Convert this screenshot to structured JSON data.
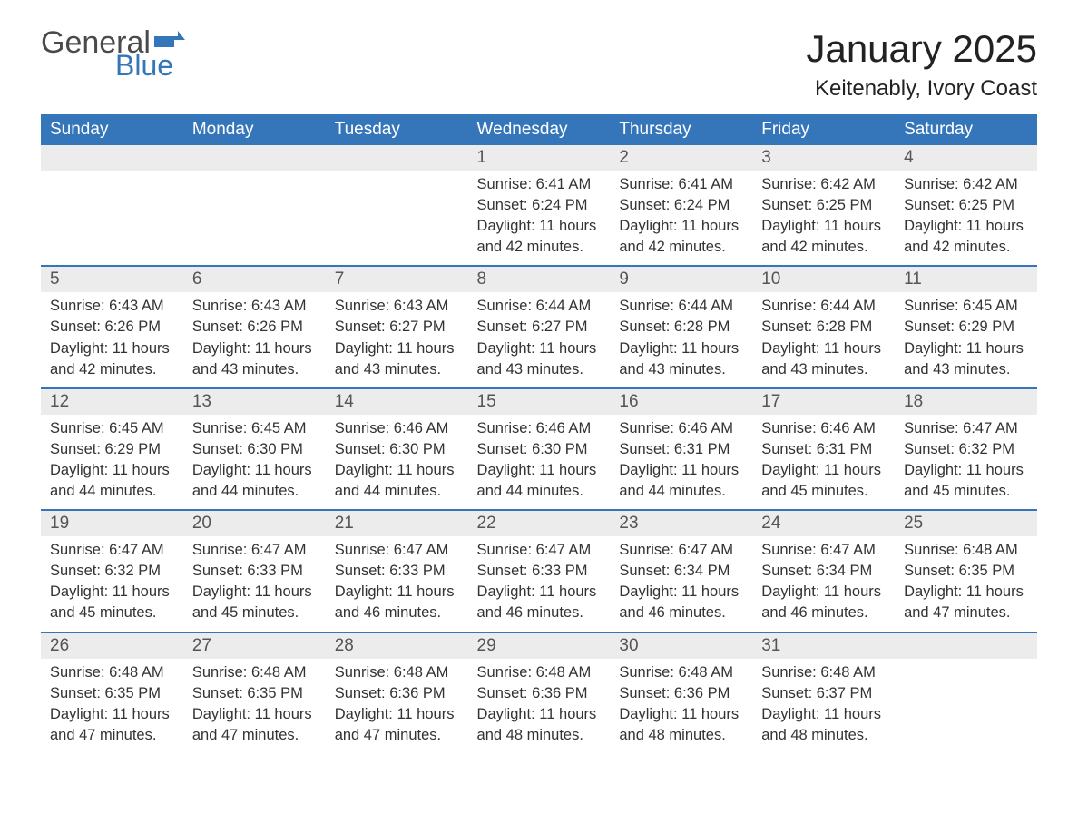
{
  "logo": {
    "word1": "General",
    "word2": "Blue",
    "brand_color": "#3576ba",
    "text_color": "#4a4a4a"
  },
  "title": "January 2025",
  "location": "Keitenably, Ivory Coast",
  "colors": {
    "header_bg": "#3576ba",
    "header_text": "#ffffff",
    "daynum_bg": "#ececec",
    "daynum_text": "#555555",
    "body_text": "#333333",
    "page_bg": "#ffffff",
    "separator": "#3576ba"
  },
  "weekdays": [
    "Sunday",
    "Monday",
    "Tuesday",
    "Wednesday",
    "Thursday",
    "Friday",
    "Saturday"
  ],
  "weeks": [
    [
      null,
      null,
      null,
      {
        "n": "1",
        "sunrise": "6:41 AM",
        "sunset": "6:24 PM",
        "daylight": "11 hours and 42 minutes."
      },
      {
        "n": "2",
        "sunrise": "6:41 AM",
        "sunset": "6:24 PM",
        "daylight": "11 hours and 42 minutes."
      },
      {
        "n": "3",
        "sunrise": "6:42 AM",
        "sunset": "6:25 PM",
        "daylight": "11 hours and 42 minutes."
      },
      {
        "n": "4",
        "sunrise": "6:42 AM",
        "sunset": "6:25 PM",
        "daylight": "11 hours and 42 minutes."
      }
    ],
    [
      {
        "n": "5",
        "sunrise": "6:43 AM",
        "sunset": "6:26 PM",
        "daylight": "11 hours and 42 minutes."
      },
      {
        "n": "6",
        "sunrise": "6:43 AM",
        "sunset": "6:26 PM",
        "daylight": "11 hours and 43 minutes."
      },
      {
        "n": "7",
        "sunrise": "6:43 AM",
        "sunset": "6:27 PM",
        "daylight": "11 hours and 43 minutes."
      },
      {
        "n": "8",
        "sunrise": "6:44 AM",
        "sunset": "6:27 PM",
        "daylight": "11 hours and 43 minutes."
      },
      {
        "n": "9",
        "sunrise": "6:44 AM",
        "sunset": "6:28 PM",
        "daylight": "11 hours and 43 minutes."
      },
      {
        "n": "10",
        "sunrise": "6:44 AM",
        "sunset": "6:28 PM",
        "daylight": "11 hours and 43 minutes."
      },
      {
        "n": "11",
        "sunrise": "6:45 AM",
        "sunset": "6:29 PM",
        "daylight": "11 hours and 43 minutes."
      }
    ],
    [
      {
        "n": "12",
        "sunrise": "6:45 AM",
        "sunset": "6:29 PM",
        "daylight": "11 hours and 44 minutes."
      },
      {
        "n": "13",
        "sunrise": "6:45 AM",
        "sunset": "6:30 PM",
        "daylight": "11 hours and 44 minutes."
      },
      {
        "n": "14",
        "sunrise": "6:46 AM",
        "sunset": "6:30 PM",
        "daylight": "11 hours and 44 minutes."
      },
      {
        "n": "15",
        "sunrise": "6:46 AM",
        "sunset": "6:30 PM",
        "daylight": "11 hours and 44 minutes."
      },
      {
        "n": "16",
        "sunrise": "6:46 AM",
        "sunset": "6:31 PM",
        "daylight": "11 hours and 44 minutes."
      },
      {
        "n": "17",
        "sunrise": "6:46 AM",
        "sunset": "6:31 PM",
        "daylight": "11 hours and 45 minutes."
      },
      {
        "n": "18",
        "sunrise": "6:47 AM",
        "sunset": "6:32 PM",
        "daylight": "11 hours and 45 minutes."
      }
    ],
    [
      {
        "n": "19",
        "sunrise": "6:47 AM",
        "sunset": "6:32 PM",
        "daylight": "11 hours and 45 minutes."
      },
      {
        "n": "20",
        "sunrise": "6:47 AM",
        "sunset": "6:33 PM",
        "daylight": "11 hours and 45 minutes."
      },
      {
        "n": "21",
        "sunrise": "6:47 AM",
        "sunset": "6:33 PM",
        "daylight": "11 hours and 46 minutes."
      },
      {
        "n": "22",
        "sunrise": "6:47 AM",
        "sunset": "6:33 PM",
        "daylight": "11 hours and 46 minutes."
      },
      {
        "n": "23",
        "sunrise": "6:47 AM",
        "sunset": "6:34 PM",
        "daylight": "11 hours and 46 minutes."
      },
      {
        "n": "24",
        "sunrise": "6:47 AM",
        "sunset": "6:34 PM",
        "daylight": "11 hours and 46 minutes."
      },
      {
        "n": "25",
        "sunrise": "6:48 AM",
        "sunset": "6:35 PM",
        "daylight": "11 hours and 47 minutes."
      }
    ],
    [
      {
        "n": "26",
        "sunrise": "6:48 AM",
        "sunset": "6:35 PM",
        "daylight": "11 hours and 47 minutes."
      },
      {
        "n": "27",
        "sunrise": "6:48 AM",
        "sunset": "6:35 PM",
        "daylight": "11 hours and 47 minutes."
      },
      {
        "n": "28",
        "sunrise": "6:48 AM",
        "sunset": "6:36 PM",
        "daylight": "11 hours and 47 minutes."
      },
      {
        "n": "29",
        "sunrise": "6:48 AM",
        "sunset": "6:36 PM",
        "daylight": "11 hours and 48 minutes."
      },
      {
        "n": "30",
        "sunrise": "6:48 AM",
        "sunset": "6:36 PM",
        "daylight": "11 hours and 48 minutes."
      },
      {
        "n": "31",
        "sunrise": "6:48 AM",
        "sunset": "6:37 PM",
        "daylight": "11 hours and 48 minutes."
      },
      null
    ]
  ],
  "labels": {
    "sunrise": "Sunrise: ",
    "sunset": "Sunset: ",
    "daylight": "Daylight: "
  }
}
